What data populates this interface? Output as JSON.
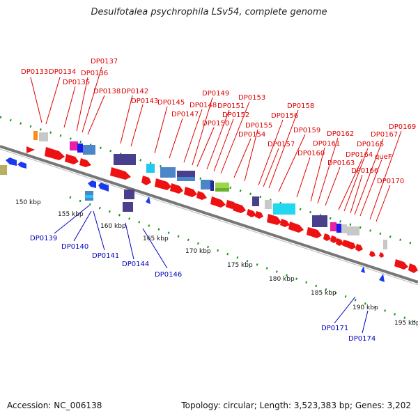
{
  "title": "Desulfotalea psychrophila LSv54, complete genome",
  "footer": {
    "accession": "Accession: NC_006138",
    "summary": "Topology: circular; Length: 3,523,383 bp; Genes: 3,202"
  },
  "colors": {
    "forward_gene": "#ee1111",
    "reverse_gene": "#1133ee",
    "plus_label": "#e00000",
    "minus_label": "#0000c0",
    "backbone": "#808080",
    "tick": "#119911"
  },
  "kbp_labels": [
    "150 kbp",
    "155 kbp",
    "160 kbp",
    "165 kbp",
    "170 kbp",
    "175 kbp",
    "180 kbp",
    "185 kbp",
    "190 kbp",
    "195 kbp"
  ],
  "plus_labels": [
    "DP0133",
    "DP0134",
    "DP0135",
    "DP0136",
    "DP0137",
    "DP0138",
    "DP0142",
    "DP0143",
    "DP0145",
    "DP0147",
    "DP0148",
    "DP0149",
    "DP0150",
    "DP0151",
    "DP0152",
    "DP0153",
    "DP0154",
    "DP0155",
    "DP0156",
    "DP0157",
    "DP0158",
    "DP0159",
    "DP0160",
    "DP0161",
    "DP0162",
    "DP0163",
    "DP0164",
    "DP0165",
    "DP0166",
    "DP0167",
    "queF",
    "DP0169",
    "DP0170"
  ],
  "minus_labels": [
    "DP0139",
    "DP0140",
    "DP0141",
    "DP0144",
    "DP0146",
    "DP0171",
    "DP0174"
  ]
}
